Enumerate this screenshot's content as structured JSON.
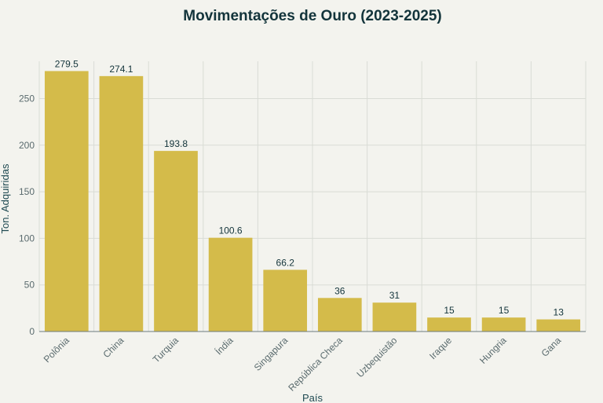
{
  "chart_data": {
    "type": "bar",
    "title": "Movimentações de Ouro (2023-2025)",
    "xlabel": "País",
    "ylabel": "Ton. Adquiridas",
    "categories": [
      "Polônia",
      "China",
      "Turquia",
      "Índia",
      "Singapura",
      "República Checa",
      "Uzbequistão",
      "Iraque",
      "Hungria",
      "Gana"
    ],
    "values": [
      279.5,
      274.1,
      193.8,
      100.6,
      66.2,
      36,
      31,
      15,
      15,
      13
    ],
    "value_labels": [
      "279.5",
      "274.1",
      "193.8",
      "100.6",
      "66.2",
      "36",
      "31",
      "15",
      "15",
      "13"
    ],
    "ylim": [
      0,
      290
    ],
    "yticks": [
      0,
      50,
      100,
      150,
      200,
      250
    ],
    "grid": true,
    "bar_color": "#d4bb4a"
  }
}
